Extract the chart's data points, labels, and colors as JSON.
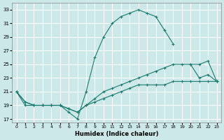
{
  "xlabel": "Humidex (Indice chaleur)",
  "bg_color": "#cce8e8",
  "grid_color": "#ffffff",
  "line_color": "#1a7a6e",
  "xlim": [
    -0.5,
    23.5
  ],
  "ylim": [
    16.5,
    34.0
  ],
  "xticks": [
    0,
    1,
    2,
    3,
    4,
    5,
    6,
    7,
    8,
    9,
    10,
    11,
    12,
    13,
    14,
    15,
    16,
    17,
    18,
    19,
    20,
    21,
    22,
    23
  ],
  "yticks": [
    17,
    19,
    21,
    23,
    25,
    27,
    29,
    31,
    33
  ],
  "lines": [
    {
      "x": [
        0,
        1,
        2,
        3,
        4,
        5,
        6,
        7,
        8,
        9,
        10,
        11,
        12,
        13,
        14,
        15,
        16,
        17,
        18
      ],
      "y": [
        21,
        19,
        19,
        19,
        19,
        19,
        18,
        17,
        21,
        26,
        29,
        31,
        32,
        32.5,
        33,
        32.5,
        32,
        30,
        28
      ]
    },
    {
      "x": [
        20,
        21,
        22,
        23
      ],
      "y": [
        25,
        23,
        23.5,
        22.5
      ]
    },
    {
      "x": [
        0,
        1,
        2,
        3,
        4,
        5,
        6,
        7,
        8,
        9,
        10,
        11,
        12,
        13,
        14,
        15,
        16,
        17,
        18,
        19,
        20,
        21,
        22,
        23
      ],
      "y": [
        21,
        19.5,
        19,
        19,
        19,
        19,
        18.5,
        18,
        19,
        20,
        21,
        21.5,
        22,
        22.5,
        23,
        23.5,
        24,
        24.5,
        25,
        25,
        25,
        25,
        25.5,
        22.5
      ]
    },
    {
      "x": [
        0,
        1,
        2,
        3,
        4,
        5,
        6,
        7,
        8,
        9,
        10,
        11,
        12,
        13,
        14,
        15,
        16,
        17,
        18,
        19,
        20,
        21,
        22,
        23
      ],
      "y": [
        21,
        19.5,
        19,
        19,
        19,
        19,
        18.5,
        18,
        19,
        19.5,
        20,
        20.5,
        21,
        21.5,
        22,
        22,
        22,
        22,
        22.5,
        22.5,
        22.5,
        22.5,
        22.5,
        22.5
      ]
    }
  ]
}
